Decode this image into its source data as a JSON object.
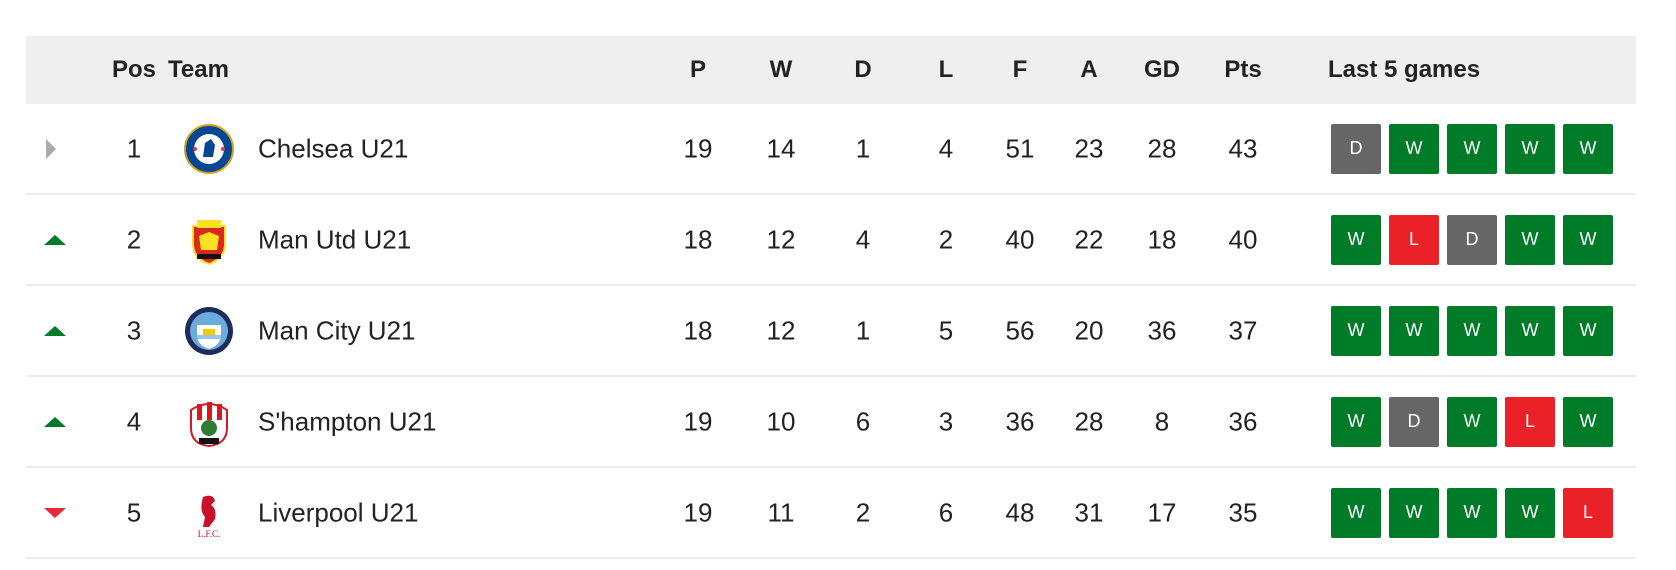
{
  "headers": {
    "pos": "Pos",
    "team": "Team",
    "p": "P",
    "w": "W",
    "d": "D",
    "l": "L",
    "f": "F",
    "a": "A",
    "gd": "GD",
    "pts": "Pts",
    "last5": "Last 5 games"
  },
  "colors": {
    "win": "#007b28",
    "loss": "#ea2227",
    "draw": "#666666",
    "up": "#007b28",
    "down": "#e8283c",
    "same": "#aaaaaa"
  },
  "rows": [
    {
      "movement": "same",
      "pos": "1",
      "team": "Chelsea U21",
      "crest": "chelsea-crest",
      "p": "19",
      "w": "14",
      "d": "1",
      "l": "4",
      "f": "51",
      "a": "23",
      "gd": "28",
      "pts": "43",
      "form": [
        "D",
        "W",
        "W",
        "W",
        "W"
      ]
    },
    {
      "movement": "up",
      "pos": "2",
      "team": "Man Utd U21",
      "crest": "man-utd-crest",
      "p": "18",
      "w": "12",
      "d": "4",
      "l": "2",
      "f": "40",
      "a": "22",
      "gd": "18",
      "pts": "40",
      "form": [
        "W",
        "L",
        "D",
        "W",
        "W"
      ]
    },
    {
      "movement": "up",
      "pos": "3",
      "team": "Man City U21",
      "crest": "man-city-crest",
      "p": "18",
      "w": "12",
      "d": "1",
      "l": "5",
      "f": "56",
      "a": "20",
      "gd": "36",
      "pts": "37",
      "form": [
        "W",
        "W",
        "W",
        "W",
        "W"
      ]
    },
    {
      "movement": "up",
      "pos": "4",
      "team": "S'hampton U21",
      "crest": "southampton-crest",
      "p": "19",
      "w": "10",
      "d": "6",
      "l": "3",
      "f": "36",
      "a": "28",
      "gd": "8",
      "pts": "36",
      "form": [
        "W",
        "D",
        "W",
        "L",
        "W"
      ]
    },
    {
      "movement": "down",
      "pos": "5",
      "team": "Liverpool U21",
      "crest": "liverpool-crest",
      "p": "19",
      "w": "11",
      "d": "2",
      "l": "6",
      "f": "48",
      "a": "31",
      "gd": "17",
      "pts": "35",
      "form": [
        "W",
        "W",
        "W",
        "W",
        "L"
      ]
    }
  ]
}
